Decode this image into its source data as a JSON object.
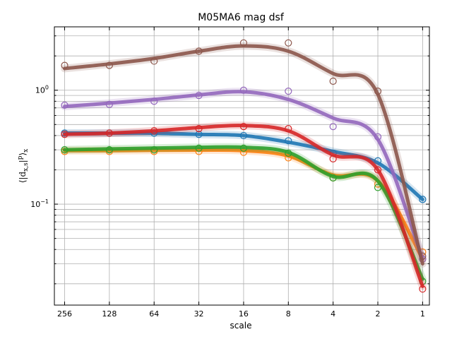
{
  "chart_data": {
    "type": "line",
    "title": "M05MA6 mag dsf",
    "xlabel": "scale",
    "ylabel": "⟨|d_{x,s}|^p⟩_x",
    "x_scale": "log2-reversed",
    "y_scale": "log",
    "xlim": [
      300,
      0.9
    ],
    "ylim": [
      0.013,
      3.6
    ],
    "x_ticks": [
      256,
      128,
      64,
      32,
      16,
      8,
      4,
      2,
      1
    ],
    "x_tick_labels": [
      "256",
      "128",
      "64",
      "32",
      "16",
      "8",
      "4",
      "2",
      "1"
    ],
    "y_tick_labels": [
      "10^{0}",
      "10^{-1}"
    ],
    "grid": true,
    "legend": "none",
    "x": [
      256,
      128,
      64,
      32,
      16,
      8,
      4,
      2,
      1
    ],
    "series": [
      {
        "color": "#1f77b4",
        "markers": [
          0.42,
          0.42,
          0.42,
          0.41,
          0.4,
          0.36,
          0.28,
          0.24,
          0.11
        ],
        "fit": [
          0.42,
          0.42,
          0.42,
          0.41,
          0.4,
          0.35,
          0.29,
          0.23,
          0.11
        ]
      },
      {
        "color": "#ff7f0e",
        "markers": [
          0.29,
          0.29,
          0.29,
          0.29,
          0.285,
          0.255,
          0.17,
          0.15,
          0.038
        ],
        "fit": [
          0.295,
          0.295,
          0.297,
          0.298,
          0.295,
          0.265,
          0.18,
          0.16,
          0.033
        ]
      },
      {
        "color": "#2ca02c",
        "markers": [
          0.3,
          0.3,
          0.3,
          0.31,
          0.31,
          0.28,
          0.17,
          0.14,
          0.021
        ],
        "fit": [
          0.3,
          0.305,
          0.31,
          0.315,
          0.315,
          0.285,
          0.175,
          0.16,
          0.022
        ]
      },
      {
        "color": "#d62728",
        "markers": [
          0.41,
          0.42,
          0.44,
          0.46,
          0.48,
          0.46,
          0.25,
          0.2,
          0.018
        ],
        "fit": [
          0.41,
          0.42,
          0.44,
          0.47,
          0.49,
          0.44,
          0.27,
          0.2,
          0.019
        ]
      },
      {
        "color": "#9467bd",
        "markers": [
          0.74,
          0.75,
          0.8,
          0.9,
          1.0,
          0.98,
          0.48,
          0.39,
          0.033
        ],
        "fit": [
          0.72,
          0.77,
          0.83,
          0.91,
          0.97,
          0.83,
          0.57,
          0.37,
          0.033
        ]
      },
      {
        "color": "#8c564b",
        "markers": [
          1.65,
          1.65,
          1.8,
          2.2,
          2.6,
          2.6,
          1.2,
          0.98,
          0.035
        ],
        "fit": [
          1.55,
          1.7,
          1.9,
          2.2,
          2.45,
          2.2,
          1.4,
          0.92,
          0.03
        ]
      }
    ]
  }
}
